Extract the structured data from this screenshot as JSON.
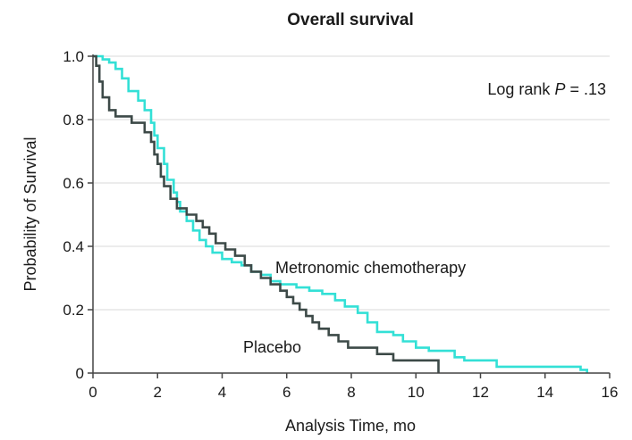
{
  "chart_data": {
    "type": "line",
    "title": "Overall survival",
    "xlabel": "Analysis Time, mo",
    "ylabel": "Probability of Survival",
    "xlim": [
      0,
      16
    ],
    "ylim": [
      0,
      1.0
    ],
    "x_ticks": [
      "0",
      "2",
      "4",
      "6",
      "8",
      "10",
      "12",
      "14",
      "16"
    ],
    "y_ticks": [
      "0",
      "0.2",
      "0.4",
      "0.6",
      "0.8",
      "1.0"
    ],
    "grid": "horizontal",
    "annotations": {
      "stat_text": "Log rank",
      "stat_italic": "P",
      "stat_value": "= .13"
    },
    "series": [
      {
        "name": "Metronomic chemotherapy",
        "color": "#33e0d6",
        "step_points": [
          [
            0,
            1.0
          ],
          [
            0.3,
            0.99
          ],
          [
            0.5,
            0.98
          ],
          [
            0.7,
            0.96
          ],
          [
            0.9,
            0.93
          ],
          [
            1.1,
            0.89
          ],
          [
            1.4,
            0.86
          ],
          [
            1.6,
            0.83
          ],
          [
            1.8,
            0.79
          ],
          [
            1.9,
            0.75
          ],
          [
            2.0,
            0.71
          ],
          [
            2.2,
            0.66
          ],
          [
            2.3,
            0.61
          ],
          [
            2.5,
            0.57
          ],
          [
            2.6,
            0.54
          ],
          [
            2.7,
            0.51
          ],
          [
            2.9,
            0.48
          ],
          [
            3.1,
            0.45
          ],
          [
            3.3,
            0.42
          ],
          [
            3.5,
            0.4
          ],
          [
            3.7,
            0.38
          ],
          [
            4.0,
            0.36
          ],
          [
            4.3,
            0.35
          ],
          [
            4.6,
            0.34
          ],
          [
            4.9,
            0.32
          ],
          [
            5.2,
            0.31
          ],
          [
            5.5,
            0.29
          ],
          [
            5.8,
            0.28
          ],
          [
            6.3,
            0.27
          ],
          [
            6.7,
            0.26
          ],
          [
            7.1,
            0.25
          ],
          [
            7.5,
            0.23
          ],
          [
            7.8,
            0.21
          ],
          [
            8.2,
            0.19
          ],
          [
            8.5,
            0.16
          ],
          [
            8.8,
            0.13
          ],
          [
            9.3,
            0.12
          ],
          [
            9.6,
            0.1
          ],
          [
            10.0,
            0.08
          ],
          [
            10.4,
            0.07
          ],
          [
            11.2,
            0.05
          ],
          [
            11.5,
            0.04
          ],
          [
            12.5,
            0.02
          ],
          [
            15.1,
            0.01
          ],
          [
            15.3,
            0.0
          ]
        ]
      },
      {
        "name": "Placebo",
        "color": "#3d4a48",
        "step_points": [
          [
            0,
            1.0
          ],
          [
            0.1,
            0.97
          ],
          [
            0.2,
            0.92
          ],
          [
            0.3,
            0.87
          ],
          [
            0.5,
            0.83
          ],
          [
            0.7,
            0.81
          ],
          [
            1.2,
            0.79
          ],
          [
            1.6,
            0.76
          ],
          [
            1.8,
            0.73
          ],
          [
            1.9,
            0.69
          ],
          [
            2.0,
            0.66
          ],
          [
            2.1,
            0.62
          ],
          [
            2.2,
            0.59
          ],
          [
            2.4,
            0.55
          ],
          [
            2.6,
            0.52
          ],
          [
            2.9,
            0.5
          ],
          [
            3.2,
            0.48
          ],
          [
            3.4,
            0.46
          ],
          [
            3.6,
            0.44
          ],
          [
            3.8,
            0.41
          ],
          [
            4.1,
            0.39
          ],
          [
            4.4,
            0.37
          ],
          [
            4.7,
            0.34
          ],
          [
            4.9,
            0.32
          ],
          [
            5.2,
            0.3
          ],
          [
            5.5,
            0.28
          ],
          [
            5.8,
            0.26
          ],
          [
            6.0,
            0.24
          ],
          [
            6.2,
            0.22
          ],
          [
            6.4,
            0.2
          ],
          [
            6.6,
            0.18
          ],
          [
            6.8,
            0.16
          ],
          [
            7.0,
            0.14
          ],
          [
            7.3,
            0.12
          ],
          [
            7.6,
            0.1
          ],
          [
            7.9,
            0.08
          ],
          [
            8.8,
            0.06
          ],
          [
            9.3,
            0.04
          ],
          [
            10.4,
            0.04
          ],
          [
            10.7,
            0.0
          ]
        ]
      }
    ]
  }
}
